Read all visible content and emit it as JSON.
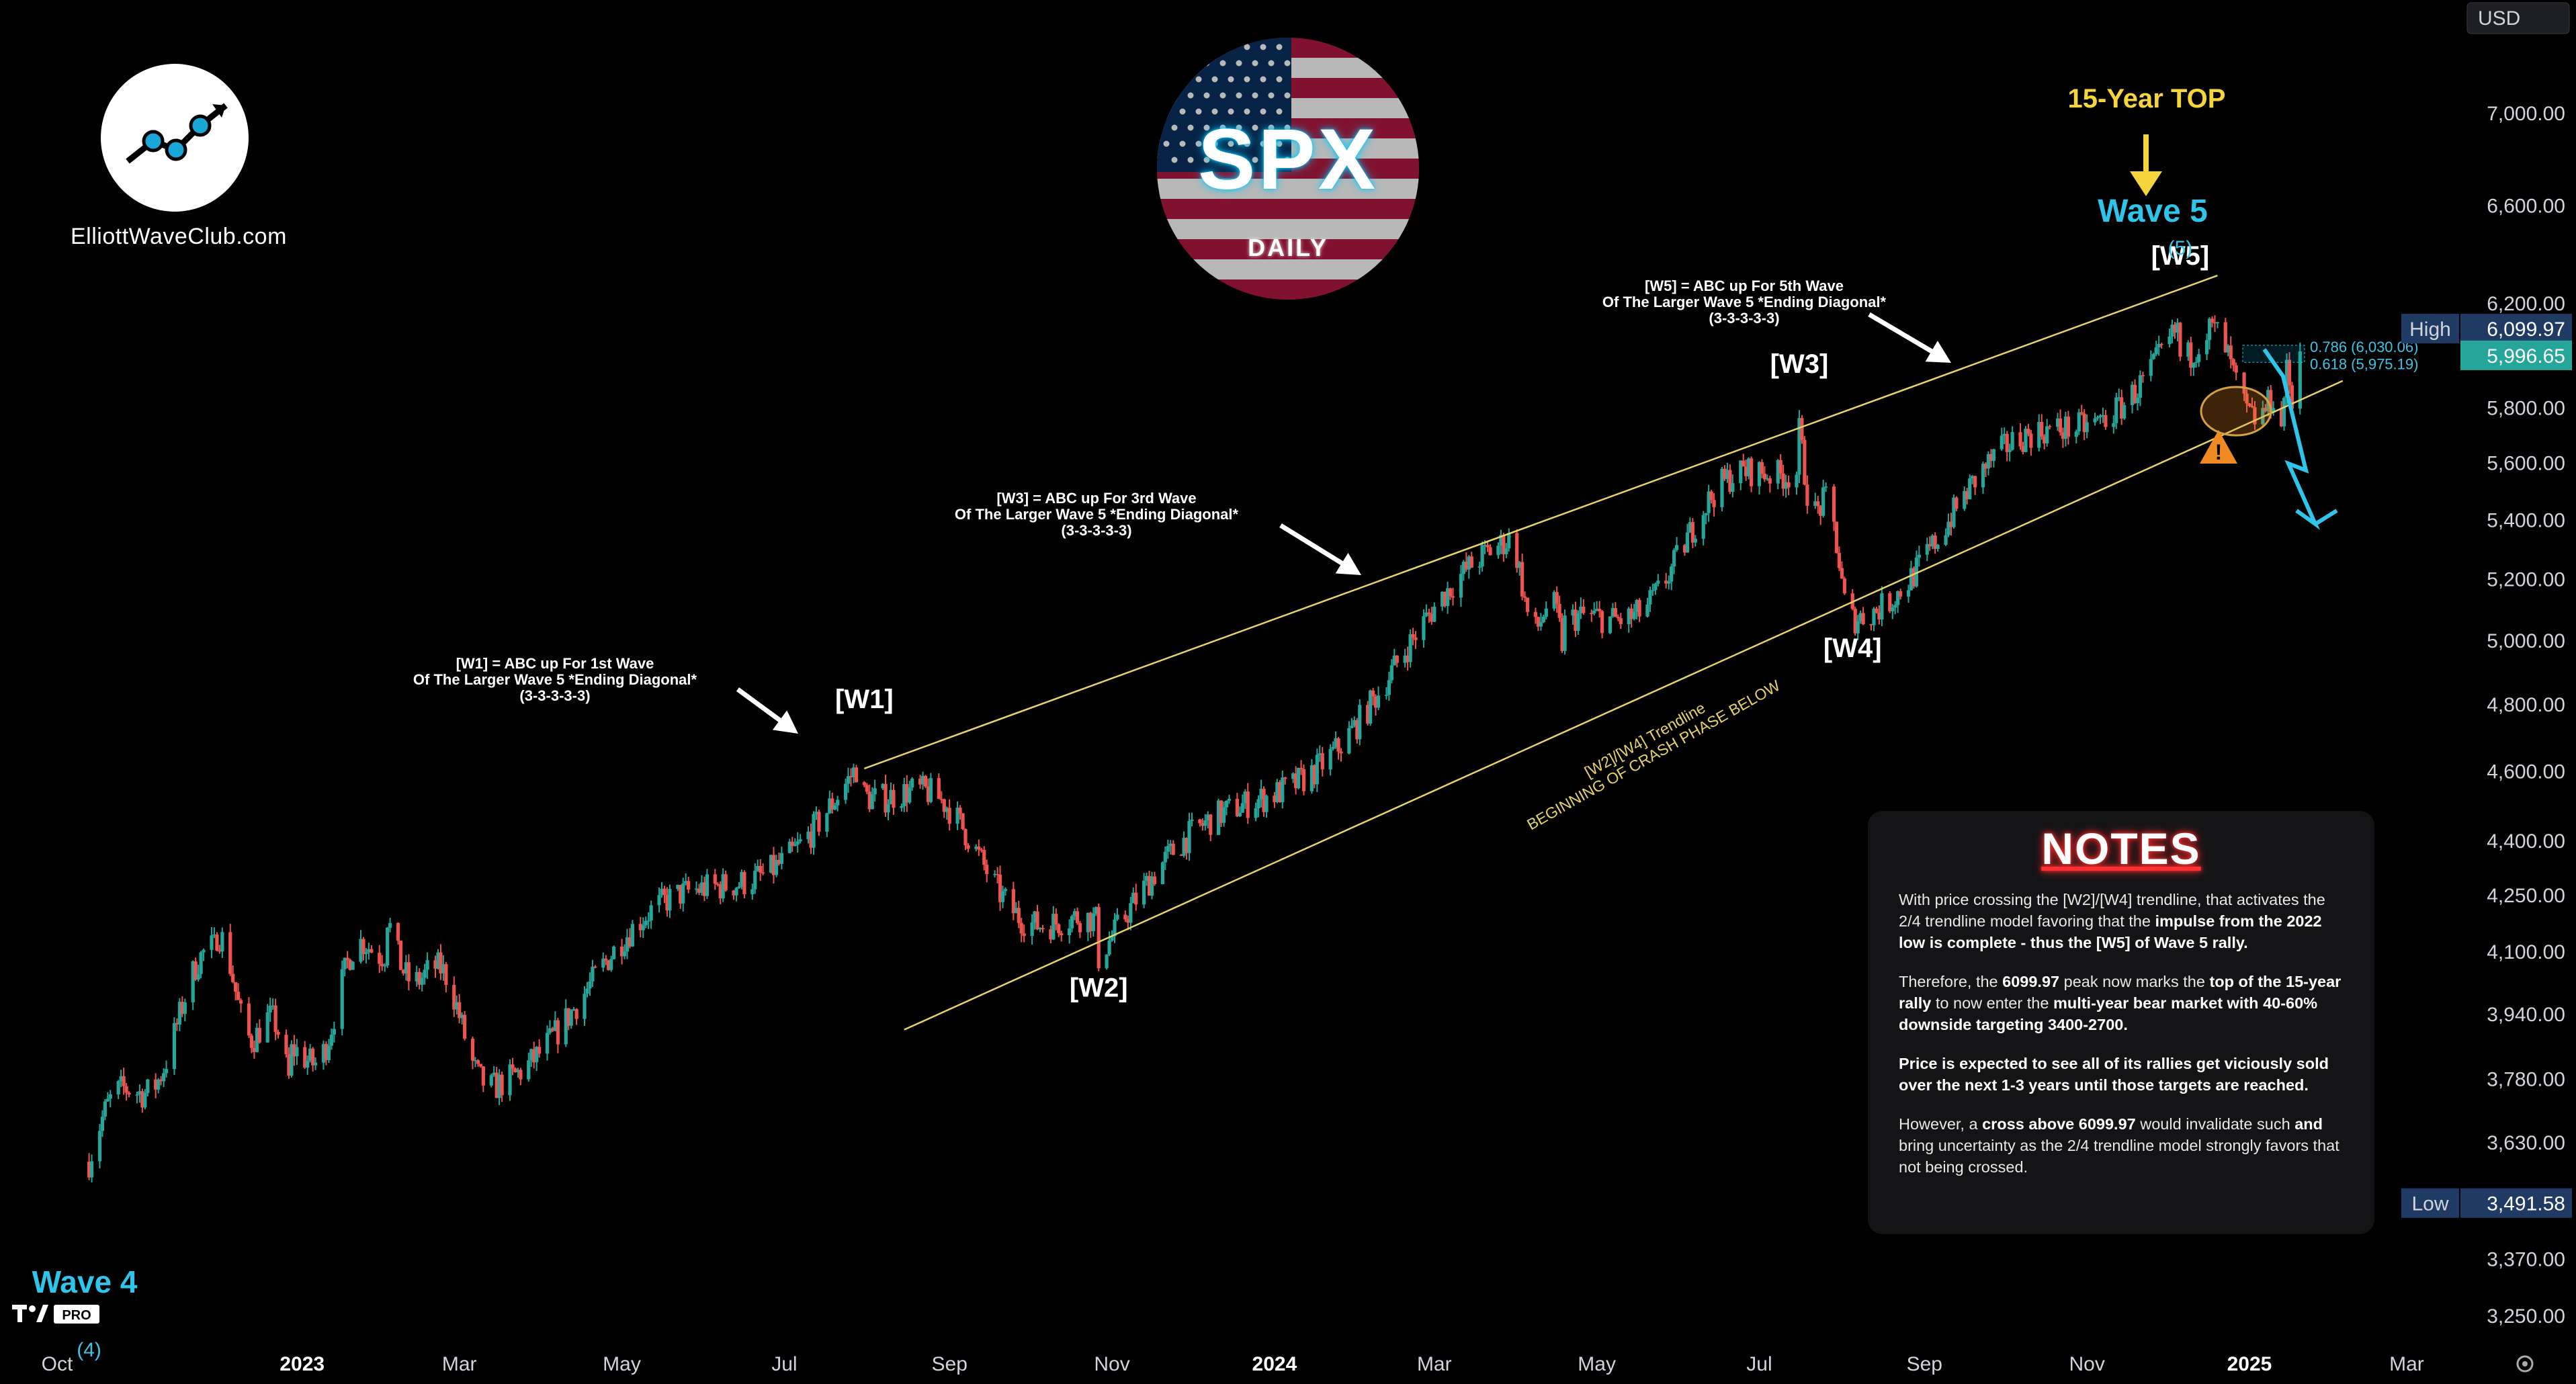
{
  "window": {
    "currency": "USD"
  },
  "brand": {
    "site": "ElliottWaveClub.com",
    "symbol": "SPX",
    "timeframe": "DAILY",
    "platform_badge": "PRO"
  },
  "price_panel": {
    "high_label": "High",
    "high_value": "6,099.97",
    "current_value": "5,996.65",
    "low_label": "Low",
    "low_value": "3,491.58",
    "fib_786": "0.786 (6,030.06)",
    "fib_618": "0.618 (5,975.19)"
  },
  "annotations": {
    "top_title": "15-Year TOP",
    "wave5": "Wave 5",
    "wave4": "Wave 4",
    "w1_lines": [
      "[W1] = ABC up For 1st Wave",
      "Of The Larger Wave 5 *Ending Diagonal*",
      "(3-3-3-3-3)"
    ],
    "w3_lines": [
      "[W3] = ABC up For 3rd Wave",
      "Of The Larger Wave 5 *Ending Diagonal*",
      "(3-3-3-3-3)"
    ],
    "w5_lines": [
      "[W5] = ABC up For 5th Wave",
      "Of The Larger Wave 5 *Ending Diagonal*",
      "(3-3-3-3-3)"
    ],
    "trendline_lines": [
      "[W2]/[W4] Trendline",
      "BEGINNING OF CRASH PHASE BELOW"
    ]
  },
  "notes": {
    "title": "NOTES",
    "p1_a": "With price crossing the [W2]/[W4] trendline, that activates the 2/4 trendline model favoring that the ",
    "p1_b": "impulse from the 2022 low is complete - thus the [W5] of Wave 5 rally.",
    "p2_a": "Therefore, the ",
    "p2_b": "6099.97",
    "p2_c": " peak now marks the ",
    "p2_d": "top of the 15-year rally",
    "p2_e": " to now enter the ",
    "p2_f": "multi-year bear market with 40-60% downside targeting 3400-2700.",
    "p3": "Price is expected to see all of its rallies get viciously sold over the next 1-3 years until those targets are reached.",
    "p4_a": "However, a ",
    "p4_b": "cross above 6099.97",
    "p4_c": " would invalidate such ",
    "p4_d": "and",
    "p4_e": " bring uncertainty as the 2/4 trendline model strongly favors that not being crossed."
  },
  "chart_data": {
    "type": "candlestick",
    "title": "SPX DAILY",
    "x_axis_ticks": [
      "Oct",
      "2023",
      "Mar",
      "May",
      "Jul",
      "Sep",
      "Nov",
      "2024",
      "Mar",
      "May",
      "Jul",
      "Sep",
      "Nov",
      "2025",
      "Mar"
    ],
    "y_axis_ticks": [
      "7,000.00",
      "6,600.00",
      "6,200.00",
      "5,800.00",
      "5,600.00",
      "5,400.00",
      "5,200.00",
      "5,000.00",
      "4,800.00",
      "4,600.00",
      "4,400.00",
      "4,250.00",
      "4,100.00",
      "3,940.00",
      "3,780.00",
      "3,630.00",
      "3,370.00",
      "3,250.00"
    ],
    "y_scale": "log",
    "ylim": [
      3180,
      7500
    ],
    "grid": false,
    "series": [
      {
        "name": "SPX",
        "points": [
          [
            "2022-10-13",
            3585
          ],
          [
            "2022-11-30",
            4080
          ],
          [
            "2022-12-28",
            3785
          ],
          [
            "2023-02-02",
            4179
          ],
          [
            "2023-03-13",
            3810
          ],
          [
            "2023-07-31",
            4607
          ],
          [
            "2023-10-27",
            4104
          ],
          [
            "2024-03-28",
            5264
          ],
          [
            "2024-04-19",
            4967
          ],
          [
            "2024-07-16",
            5669
          ],
          [
            "2024-08-05",
            5119
          ],
          [
            "2024-12-06",
            6099.97
          ],
          [
            "2025-01-13",
            5773
          ],
          [
            "2025-01-21",
            5996.65
          ]
        ]
      }
    ],
    "trendlines": [
      {
        "name": "upper",
        "from": [
          "2023-07-31",
          4607
        ],
        "to": [
          "2024-12-20",
          6310
        ]
      },
      {
        "name": "W2/W4",
        "from": [
          "2023-08-15",
          3900
        ],
        "to": [
          "2025-02-05",
          5900
        ]
      }
    ],
    "wave_labels": [
      {
        "text": "[W1]",
        "x": "2023-07-31",
        "y": 4607
      },
      {
        "text": "[W2]",
        "x": "2023-10-27",
        "y": 4104
      },
      {
        "text": "[W3]",
        "x": "2024-07-16",
        "y": 5669
      },
      {
        "text": "[W4]",
        "x": "2024-08-05",
        "y": 5119
      },
      {
        "text": "[W5]",
        "x": "2024-12-06",
        "y": 6099.97
      },
      {
        "text": "(5)",
        "x": "2024-12-06",
        "y": 6099.97
      },
      {
        "text": "(4)",
        "x": "2022-10-13",
        "y": 3585
      }
    ]
  }
}
